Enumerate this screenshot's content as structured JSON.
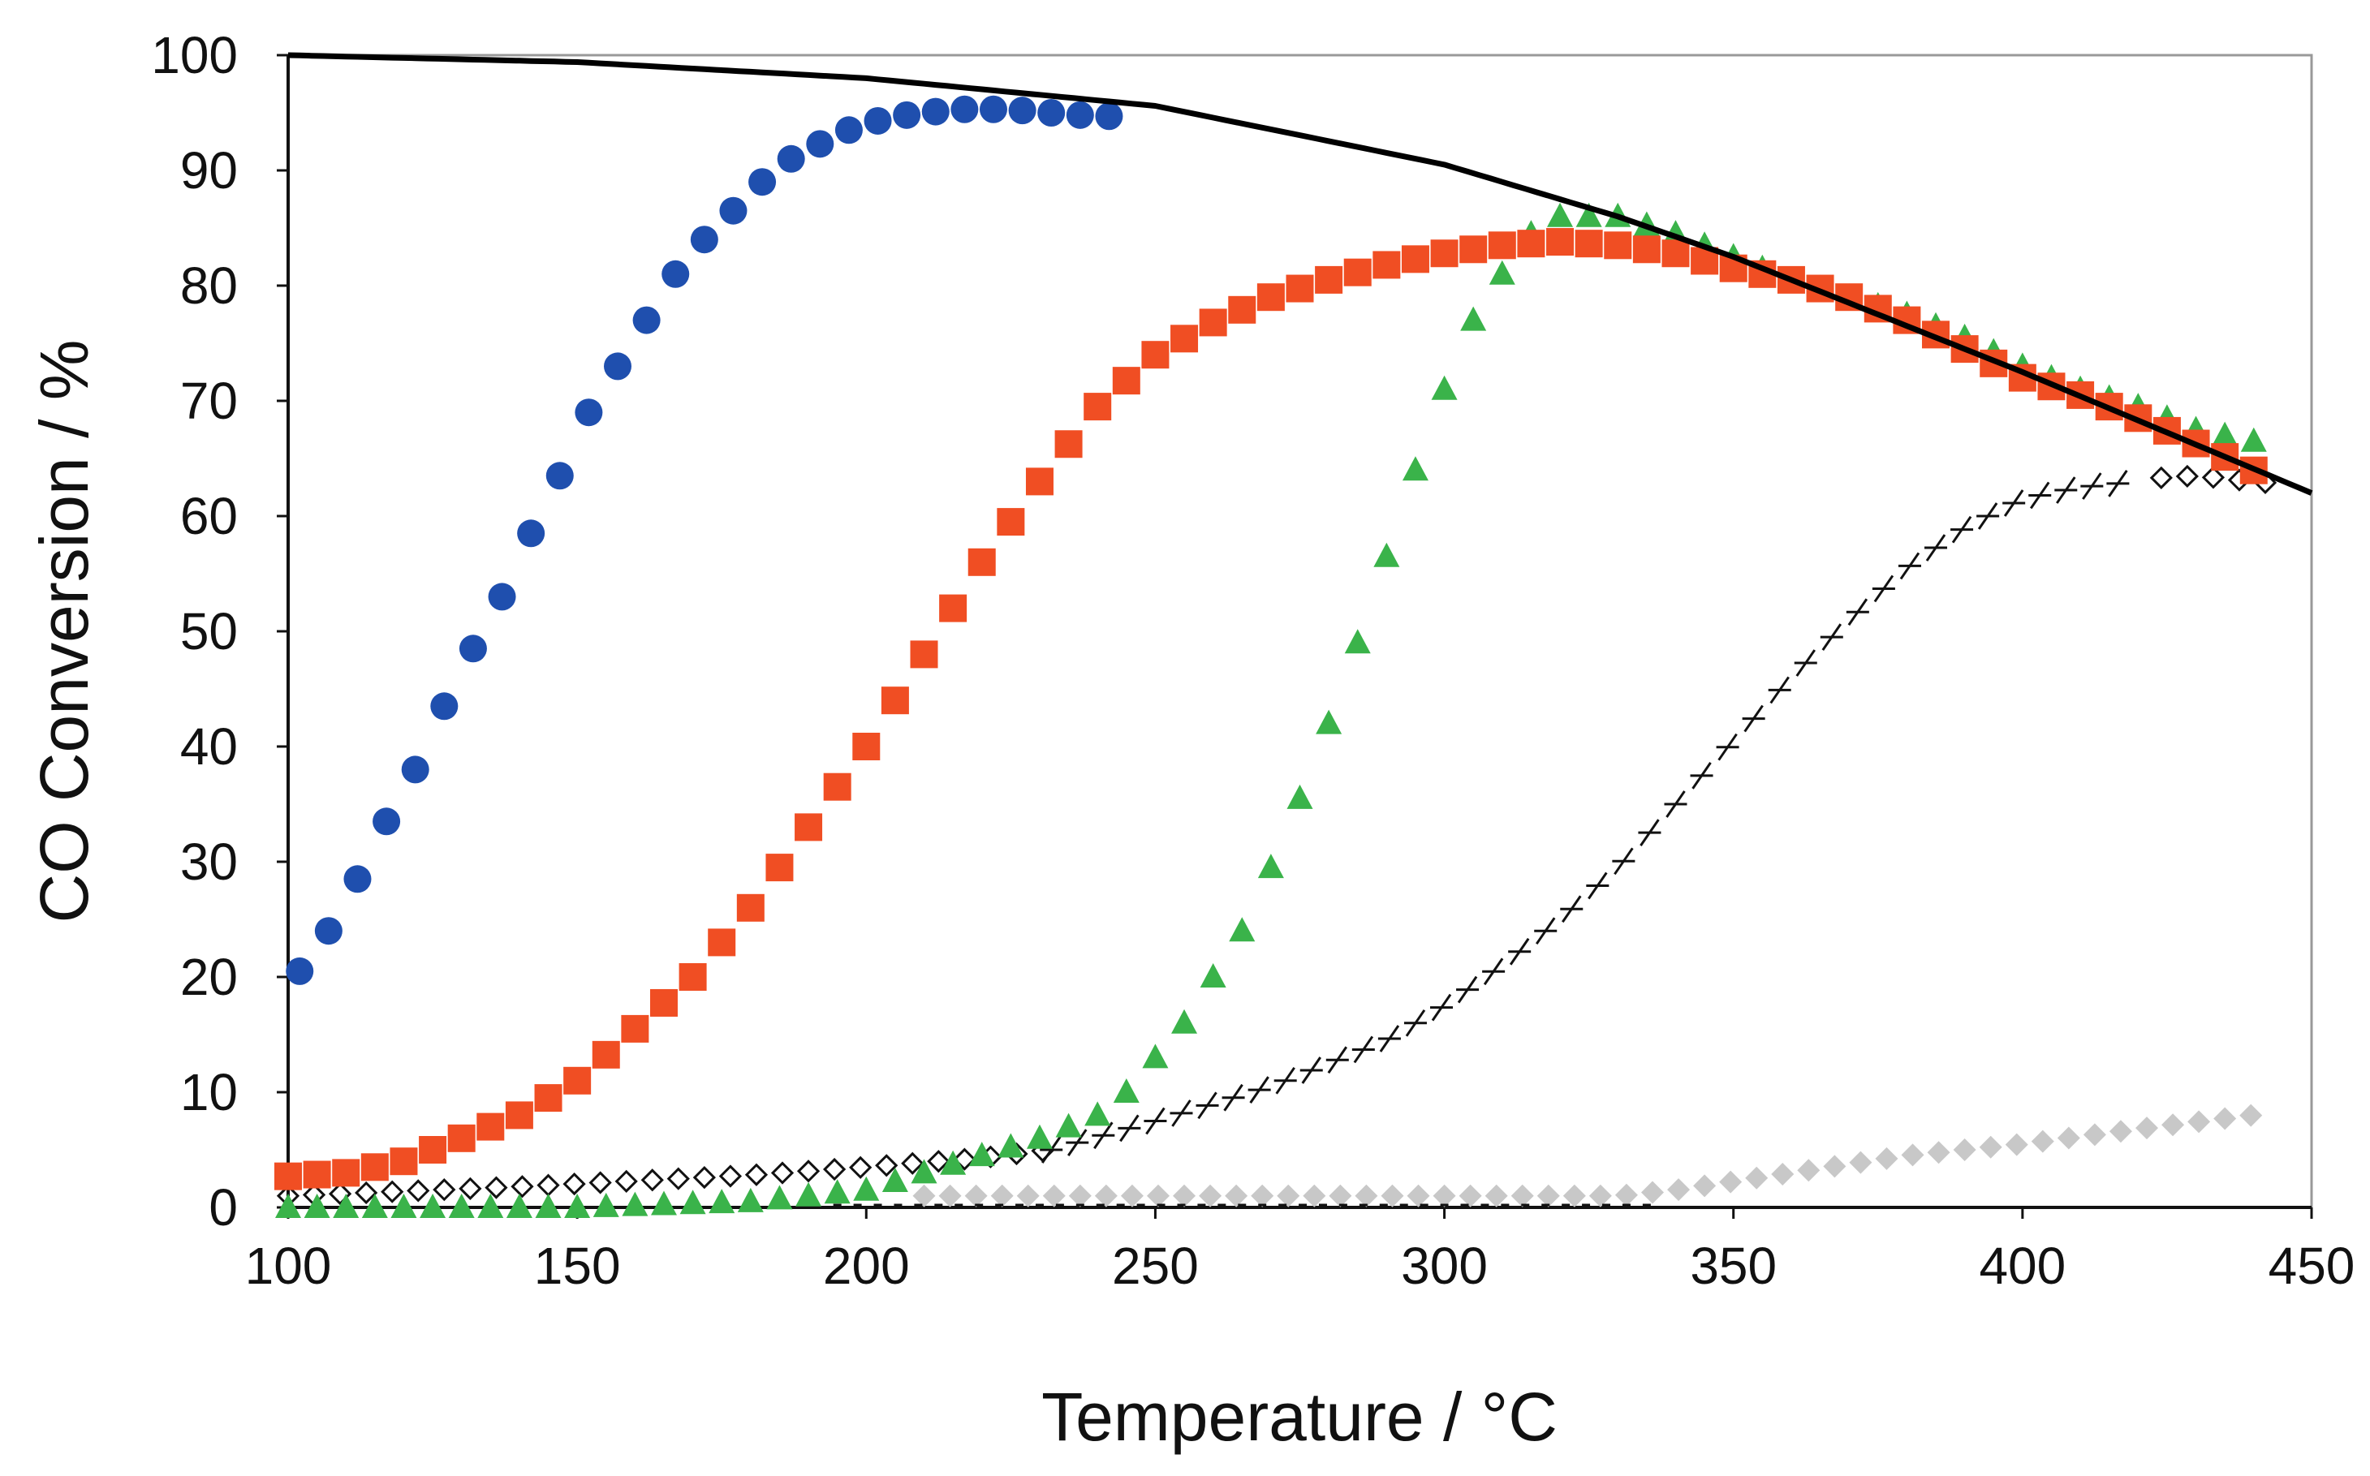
{
  "chart_data": {
    "type": "scatter",
    "title": "",
    "xlabel": "Temperature / °C",
    "ylabel": "CO Conversion / %",
    "xlim": [
      100,
      450
    ],
    "ylim": [
      0,
      100
    ],
    "xticks": [
      100,
      150,
      200,
      250,
      300,
      350,
      400,
      450
    ],
    "yticks": [
      0,
      10,
      20,
      30,
      40,
      50,
      60,
      70,
      80,
      90,
      100
    ],
    "grid": false,
    "legend": "none",
    "equilibrium_line": {
      "name": "equilibrium",
      "color": "#000000",
      "x": [
        100,
        150,
        200,
        250,
        300,
        330,
        350,
        400,
        450
      ],
      "y": [
        100,
        99.4,
        98,
        95.6,
        90.5,
        86,
        82.5,
        72.5,
        62
      ]
    },
    "series": [
      {
        "name": "series-blue-circles",
        "marker": "circle",
        "color": "#1f4fae",
        "start": 102,
        "end": 245,
        "step": 5,
        "profile": {
          "x": [
            102,
            107,
            112,
            117,
            122,
            127,
            132,
            137,
            142,
            147,
            152,
            157,
            162,
            167,
            172,
            177,
            182,
            187,
            192,
            197,
            202,
            207,
            212,
            217,
            222,
            227,
            232,
            237,
            242,
            245
          ],
          "y": [
            20.5,
            24,
            28.5,
            33.5,
            38,
            43.5,
            48.5,
            53,
            58.5,
            63.5,
            69,
            73,
            77,
            81,
            84,
            86.5,
            89,
            91,
            92.3,
            93.5,
            94.3,
            94.8,
            95.1,
            95.3,
            95.3,
            95.2,
            95.0,
            94.8,
            94.7,
            94.6
          ]
        }
      },
      {
        "name": "series-red-squares",
        "marker": "square",
        "color": "#f04e23",
        "start": 100,
        "end": 442,
        "step": 5,
        "profile": {
          "x": [
            100,
            110,
            120,
            130,
            140,
            150,
            160,
            170,
            180,
            190,
            200,
            210,
            220,
            230,
            240,
            250,
            260,
            270,
            280,
            290,
            300,
            310,
            320,
            330,
            340,
            350,
            360,
            370,
            380,
            390,
            400,
            410,
            420,
            430,
            442
          ],
          "y": [
            2.7,
            3,
            4,
            6,
            8,
            11,
            15.5,
            20,
            26,
            33,
            40,
            48,
            56,
            63,
            69.5,
            74,
            76.8,
            79,
            80.5,
            81.8,
            82.8,
            83.5,
            83.8,
            83.5,
            82.8,
            81.5,
            80.5,
            79,
            77,
            74.5,
            72,
            70.5,
            68.5,
            66.3,
            63.5
          ]
        }
      },
      {
        "name": "series-green-triangles",
        "marker": "triangle",
        "color": "#3ab34a",
        "start": 100,
        "end": 442,
        "step": 5,
        "profile": {
          "x": [
            100,
            150,
            180,
            200,
            210,
            220,
            230,
            240,
            245,
            250,
            255,
            260,
            265,
            270,
            275,
            280,
            285,
            290,
            295,
            300,
            305,
            310,
            315,
            320,
            325,
            330,
            340,
            350,
            360,
            370,
            380,
            390,
            400,
            410,
            420,
            430,
            440,
            442
          ],
          "y": [
            0,
            0,
            0.5,
            1.5,
            3,
            4.5,
            6,
            8,
            10,
            13,
            16,
            20,
            24,
            29.5,
            35.5,
            42,
            49,
            56.5,
            64,
            71,
            77,
            81,
            84.5,
            86,
            86,
            86,
            84.5,
            82.5,
            80.5,
            79,
            77.5,
            75.5,
            73,
            71,
            69.5,
            67.5,
            66.5,
            66
          ]
        }
      },
      {
        "name": "series-black-open-diamonds",
        "marker": "open-diamond",
        "color": "#111111",
        "start": 100,
        "end": 232,
        "step": 4.5,
        "profile": {
          "x": [
            100,
            120,
            140,
            160,
            180,
            200,
            220,
            232
          ],
          "y": [
            1,
            1.4,
            1.8,
            2.3,
            2.8,
            3.5,
            4.3,
            5
          ]
        }
      },
      {
        "name": "series-black-crosses",
        "marker": "cross",
        "color": "#111111",
        "start": 232,
        "end": 420,
        "step": 4.5,
        "profile": {
          "x": [
            232,
            250,
            270,
            290,
            300,
            310,
            320,
            330,
            340,
            350,
            360,
            370,
            380,
            390,
            400,
            410,
            420
          ],
          "y": [
            5,
            7.5,
            10.5,
            14.5,
            17.5,
            21,
            25,
            29.5,
            35,
            40.5,
            46,
            51,
            55.5,
            59,
            61.5,
            62.5,
            63
          ]
        }
      },
      {
        "name": "series-black-open-diamonds-end",
        "marker": "open-diamond",
        "color": "#111111",
        "start": 424,
        "end": 444,
        "step": 4.5,
        "profile": {
          "x": [
            420,
            430,
            444
          ],
          "y": [
            63.2,
            63.5,
            62.8
          ]
        }
      },
      {
        "name": "series-gray-diamonds",
        "marker": "diamond",
        "color": "#c8c8c8",
        "start": 210,
        "end": 443,
        "step": 4.5,
        "profile": {
          "x": [
            210,
            230,
            260,
            300,
            330,
            340,
            360,
            380,
            400,
            420,
            443
          ],
          "y": [
            1,
            1,
            1,
            1,
            1,
            1.5,
            3,
            4.5,
            5.5,
            6.8,
            8.2
          ]
        }
      },
      {
        "name": "series-dashed-baseline",
        "marker": "dash",
        "color": "#111111",
        "start": 195,
        "end": 335,
        "step": 3.5,
        "profile": {
          "x": [
            195,
            335
          ],
          "y": [
            0,
            0
          ]
        }
      }
    ]
  }
}
